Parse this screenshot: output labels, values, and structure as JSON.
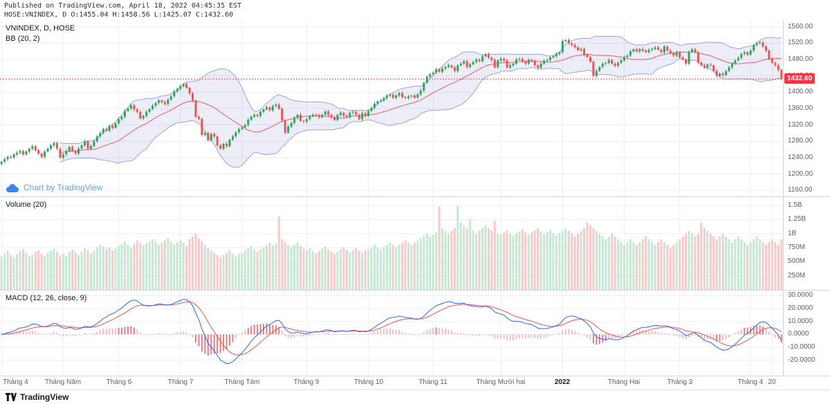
{
  "header": {
    "line1": "Published on TradingView.com, April 18, 2022 04:45:35 EST",
    "line2": "HOSE:VNINDEX, D O:1455.04 H:1458.56 L:1425.07 C:1432.60"
  },
  "legend": {
    "symbol": "VNINDEX, D, HOSE",
    "bb": "BB (20, 2)",
    "volume": "Volume (20)",
    "macd": "MACD (12, 26, close, 9)"
  },
  "watermark": {
    "text": "Chart by TradingView"
  },
  "footer": {
    "brand": "TradingView"
  },
  "chart_data": {
    "type": "candlestick",
    "symbol": "VNINDEX",
    "exchange": "HOSE",
    "interval": "D",
    "last_ohlc": {
      "open": 1455.04,
      "high": 1458.56,
      "low": 1425.07,
      "close": 1432.6
    },
    "indicators": {
      "bollinger": {
        "length": 20,
        "mult": 2
      },
      "volume_ma": 20,
      "macd": {
        "fast": 12,
        "slow": 26,
        "source": "close",
        "signal": 9
      }
    },
    "price_axis": {
      "max": 1575,
      "min": 1145,
      "last": 1432.6,
      "last_label": "1432.60",
      "ticks": [
        {
          "v": 1560,
          "label": "1560.00"
        },
        {
          "v": 1520,
          "label": "1520.00"
        },
        {
          "v": 1480,
          "label": "1480.00"
        },
        {
          "v": 1440,
          "label": "1440.00"
        },
        {
          "v": 1400,
          "label": "1400.00"
        },
        {
          "v": 1360,
          "label": "1360.00"
        },
        {
          "v": 1320,
          "label": "1320.00"
        },
        {
          "v": 1280,
          "label": "1280.00"
        },
        {
          "v": 1240,
          "label": "1240.00"
        },
        {
          "v": 1200,
          "label": "1200.00"
        },
        {
          "v": 1160,
          "label": "1160.00"
        }
      ]
    },
    "volume_axis": {
      "max_m": 1650,
      "ticks": [
        {
          "v": 1500,
          "label": "1.5B"
        },
        {
          "v": 1250,
          "label": "1.25B"
        },
        {
          "v": 1000,
          "label": "1B"
        },
        {
          "v": 750,
          "label": "750M"
        },
        {
          "v": 500,
          "label": "500M"
        },
        {
          "v": 250,
          "label": "250M"
        }
      ]
    },
    "macd_axis": {
      "max": 34,
      "min": -32,
      "ticks": [
        {
          "v": 30,
          "label": "30.0000"
        },
        {
          "v": 20,
          "label": "20.0000"
        },
        {
          "v": 10,
          "label": "10.0000"
        },
        {
          "v": 0,
          "label": "0.0000"
        },
        {
          "v": -10,
          "label": "-10.0000"
        },
        {
          "v": -20,
          "label": "-20.0000"
        }
      ]
    },
    "x_labels": [
      {
        "label": "Tháng 4",
        "i": 0
      },
      {
        "label": "Tháng Năm",
        "i": 20
      },
      {
        "label": "Tháng 6",
        "i": 38
      },
      {
        "label": "Tháng 7",
        "i": 58
      },
      {
        "label": "Tháng Tám",
        "i": 78
      },
      {
        "label": "Tháng 9",
        "i": 99
      },
      {
        "label": "Tháng 10",
        "i": 119
      },
      {
        "label": "Tháng 11",
        "i": 140
      },
      {
        "label": "Tháng Mười hai",
        "i": 162
      },
      {
        "label": "2022",
        "i": 182
      },
      {
        "label": "Tháng Hai",
        "i": 202
      },
      {
        "label": "Tháng 3",
        "i": 220
      },
      {
        "label": "Tháng 4",
        "i": 243
      },
      {
        "label": "20",
        "i": 250
      }
    ],
    "closes": [
      1230,
      1236,
      1242,
      1240,
      1248,
      1252,
      1256,
      1248,
      1255,
      1262,
      1268,
      1258,
      1250,
      1242,
      1255,
      1262,
      1270,
      1276,
      1262,
      1240,
      1248,
      1256,
      1266,
      1256,
      1250,
      1262,
      1270,
      1280,
      1262,
      1268,
      1280,
      1292,
      1300,
      1310,
      1306,
      1318,
      1313,
      1324,
      1334,
      1340,
      1354,
      1360,
      1368,
      1358,
      1352,
      1336,
      1342,
      1352,
      1359,
      1367,
      1374,
      1380,
      1376,
      1371,
      1382,
      1390,
      1402,
      1408,
      1415,
      1420,
      1411,
      1397,
      1380,
      1340,
      1335,
      1296,
      1300,
      1282,
      1298,
      1292,
      1270,
      1262,
      1274,
      1268,
      1284,
      1292,
      1302,
      1310,
      1314,
      1320,
      1333,
      1340,
      1345,
      1342,
      1352,
      1358,
      1363,
      1356,
      1366,
      1370,
      1360,
      1331,
      1301,
      1316,
      1325,
      1337,
      1345,
      1330,
      1328,
      1334,
      1341,
      1345,
      1344,
      1339,
      1345,
      1353,
      1345,
      1339,
      1332,
      1345,
      1350,
      1342,
      1339,
      1350,
      1352,
      1345,
      1334,
      1349,
      1342,
      1354,
      1362,
      1372,
      1378,
      1380,
      1386,
      1392,
      1394,
      1386,
      1392,
      1398,
      1388,
      1386,
      1390,
      1392,
      1387,
      1395,
      1404,
      1423,
      1438,
      1444,
      1448,
      1456,
      1450,
      1458,
      1462,
      1466,
      1461,
      1452,
      1466,
      1470,
      1476,
      1462,
      1468,
      1474,
      1480,
      1476,
      1488,
      1493,
      1485,
      1479,
      1461,
      1478,
      1482,
      1478,
      1460,
      1466,
      1470,
      1480,
      1482,
      1476,
      1470,
      1479,
      1476,
      1466,
      1460,
      1470,
      1477,
      1479,
      1485,
      1488,
      1494,
      1498,
      1525,
      1528,
      1520,
      1516,
      1510,
      1503,
      1506,
      1492,
      1486,
      1475,
      1440,
      1452,
      1462,
      1470,
      1472,
      1479,
      1470,
      1465,
      1472,
      1478,
      1486,
      1490,
      1500,
      1505,
      1500,
      1506,
      1502,
      1498,
      1504,
      1506,
      1510,
      1504,
      1498,
      1512,
      1502,
      1496,
      1490,
      1498,
      1485,
      1480,
      1470,
      1499,
      1505,
      1498,
      1473,
      1466,
      1460,
      1468,
      1466,
      1452,
      1440,
      1446,
      1442,
      1452,
      1461,
      1470,
      1478,
      1484,
      1494,
      1498,
      1492,
      1502,
      1516,
      1520,
      1522,
      1512,
      1502,
      1482,
      1472,
      1466,
      1455,
      1432.6
    ],
    "volumes_m": [
      600,
      650,
      700,
      620,
      580,
      640,
      690,
      720,
      660,
      600,
      630,
      680,
      700,
      640,
      600,
      660,
      700,
      730,
      680,
      620,
      640,
      600,
      680,
      720,
      660,
      620,
      680,
      740,
      700,
      650,
      700,
      760,
      800,
      780,
      720,
      760,
      700,
      740,
      780,
      820,
      860,
      800,
      760,
      820,
      880,
      840,
      790,
      830,
      870,
      900,
      850,
      800,
      840,
      880,
      920,
      860,
      810,
      850,
      880,
      840,
      780,
      900,
      950,
      1000,
      920,
      860,
      800,
      740,
      700,
      660,
      620,
      580,
      620,
      660,
      700,
      640,
      600,
      640,
      660,
      700,
      740,
      780,
      720,
      680,
      720,
      760,
      800,
      840,
      790,
      830,
      1310,
      900,
      850,
      800,
      760,
      800,
      840,
      780,
      730,
      700,
      740,
      690,
      650,
      690,
      730,
      770,
      720,
      680,
      640,
      680,
      720,
      760,
      710,
      670,
      710,
      750,
      700,
      660,
      700,
      720,
      760,
      800,
      760,
      720,
      760,
      800,
      840,
      800,
      760,
      800,
      840,
      880,
      840,
      800,
      840,
      880,
      920,
      960,
      1000,
      950,
      980,
      1020,
      1480,
      1100,
      1050,
      1000,
      1050,
      1100,
      1500,
      1200,
      1150,
      1100,
      1260,
      1050,
      1000,
      1050,
      1100,
      1150,
      1100,
      1050,
      1230,
      1000,
      980,
      1020,
      1060,
      1000,
      960,
      1000,
      1040,
      1080,
      1020,
      980,
      1020,
      1060,
      1100,
      1040,
      990,
      1030,
      1070,
      1010,
      970,
      1010,
      1050,
      1100,
      1050,
      1000,
      950,
      1000,
      1050,
      1100,
      1200,
      1150,
      1100,
      1050,
      1000,
      950,
      900,
      950,
      1000,
      950,
      900,
      850,
      800,
      850,
      900,
      850,
      800,
      850,
      900,
      950,
      900,
      850,
      800,
      850,
      900,
      850,
      800,
      750,
      800,
      850,
      900,
      950,
      1000,
      1050,
      1000,
      950,
      1000,
      1200,
      1100,
      1050,
      1000,
      950,
      900,
      950,
      1000,
      950,
      900,
      850,
      900,
      950,
      900,
      850,
      800,
      850,
      900,
      950,
      900,
      850,
      800,
      850,
      900,
      850,
      800,
      900
    ],
    "colors": {
      "up": "#33a35e",
      "down": "#ef5350",
      "vol_up": "#c6e8d2",
      "vol_down": "#f7caca",
      "grid": "#eceef2",
      "band_fill": "rgba(106,116,197,0.13)",
      "band_line": "#9aa2d8",
      "basis_line": "#e85a6a",
      "macd_line": "#2962ff",
      "signal_line": "#ef5350",
      "hist_weak": "#f3bcc0",
      "hist_strong": "#e57b84",
      "last_line": "#f23645"
    }
  }
}
